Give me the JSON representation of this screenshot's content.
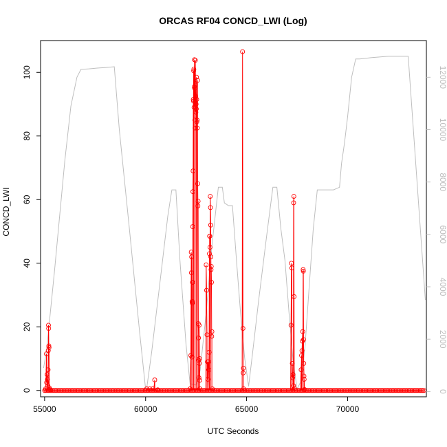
{
  "chart_data": {
    "type": "scatter",
    "title": "ORCAS RF04 CONCD_LWI (Log)",
    "xlabel": "UTC Seconds",
    "ylabel": "CONCD_LWI",
    "xlim": [
      54800,
      73900
    ],
    "ylim": [
      -2,
      110
    ],
    "y2lim": [
      -200,
      13400
    ],
    "xticks": [
      "55000",
      "60000",
      "65000",
      "70000"
    ],
    "yticks": [
      "0",
      "20",
      "40",
      "60",
      "80",
      "100"
    ],
    "y2ticks": [
      "0",
      "2000",
      "4000",
      "6000",
      "8000",
      "10000",
      "12000"
    ],
    "colors": {
      "series": "#ff0000",
      "altitude": "#bebebe"
    },
    "series": [
      {
        "values": [
          [
            55050,
            0.5
          ],
          [
            55090,
            11.5
          ],
          [
            55100,
            2.5
          ],
          [
            55120,
            5
          ],
          [
            55140,
            3.5
          ],
          [
            55160,
            1.5
          ],
          [
            55170,
            6.5
          ],
          [
            55180,
            12.5
          ],
          [
            55190,
            20.5
          ],
          [
            55200,
            19.5
          ],
          [
            55210,
            14
          ],
          [
            55220,
            13.5
          ],
          [
            55230,
            0.8
          ],
          [
            55250,
            0.3
          ],
          [
            55300,
            0.2
          ],
          [
            60050,
            0.5
          ],
          [
            60200,
            0.5
          ],
          [
            60350,
            0.5
          ],
          [
            60450,
            3.3
          ],
          [
            60600,
            0.2
          ],
          [
            62200,
            0.5
          ],
          [
            62240,
            11
          ],
          [
            62260,
            43.5
          ],
          [
            62270,
            37
          ],
          [
            62280,
            42
          ],
          [
            62290,
            10.5
          ],
          [
            62300,
            28
          ],
          [
            62310,
            27.5
          ],
          [
            62320,
            34
          ],
          [
            62330,
            51.5
          ],
          [
            62340,
            62.5
          ],
          [
            62350,
            69
          ],
          [
            62360,
            91.5
          ],
          [
            62370,
            91
          ],
          [
            62380,
            100.5
          ],
          [
            62390,
            101
          ],
          [
            62400,
            89
          ],
          [
            62410,
            95.5
          ],
          [
            62420,
            104
          ],
          [
            62430,
            95
          ],
          [
            62440,
            85
          ],
          [
            62450,
            82.5
          ],
          [
            62460,
            103.8
          ],
          [
            62470,
            96
          ],
          [
            62480,
            92.5
          ],
          [
            62490,
            87.5
          ],
          [
            62500,
            90
          ],
          [
            62510,
            88.5
          ],
          [
            62520,
            98.5
          ],
          [
            62530,
            91.5
          ],
          [
            62540,
            84.5
          ],
          [
            62550,
            85
          ],
          [
            62560,
            82.5
          ],
          [
            62570,
            97.5
          ],
          [
            62580,
            65
          ],
          [
            62590,
            58
          ],
          [
            62600,
            59.5
          ],
          [
            62610,
            21
          ],
          [
            62620,
            16.5
          ],
          [
            62630,
            9.5
          ],
          [
            62640,
            4
          ],
          [
            62650,
            20.5
          ],
          [
            62660,
            8.5
          ],
          [
            62670,
            10
          ],
          [
            62680,
            3.2
          ],
          [
            62690,
            0.5
          ],
          [
            63000,
            39.5
          ],
          [
            63020,
            31.5
          ],
          [
            63040,
            17.5
          ],
          [
            63060,
            9
          ],
          [
            63080,
            3.5
          ],
          [
            63100,
            9
          ],
          [
            63120,
            6.5
          ],
          [
            63140,
            12
          ],
          [
            63160,
            43
          ],
          [
            63170,
            48.5
          ],
          [
            63180,
            48.5
          ],
          [
            63190,
            45
          ],
          [
            63200,
            61
          ],
          [
            63210,
            57.5
          ],
          [
            63220,
            52
          ],
          [
            63230,
            42
          ],
          [
            63240,
            38
          ],
          [
            63250,
            39
          ],
          [
            63260,
            34
          ],
          [
            63270,
            17
          ],
          [
            63280,
            18.5
          ],
          [
            63300,
            0.5
          ],
          [
            64800,
            106.5
          ],
          [
            64820,
            19.5
          ],
          [
            64830,
            5.5
          ],
          [
            64840,
            7
          ],
          [
            64850,
            0.5
          ],
          [
            67200,
            20.5
          ],
          [
            67220,
            40
          ],
          [
            67240,
            38.5
          ],
          [
            67260,
            8.5
          ],
          [
            67280,
            4
          ],
          [
            67300,
            5
          ],
          [
            67320,
            1.5
          ],
          [
            67330,
            59
          ],
          [
            67340,
            61
          ],
          [
            67350,
            29.5
          ],
          [
            67370,
            0.5
          ],
          [
            67700,
            6.5
          ],
          [
            67720,
            11
          ],
          [
            67740,
            12.5
          ],
          [
            67760,
            15.5
          ],
          [
            67780,
            18.5
          ],
          [
            67800,
            38
          ],
          [
            67810,
            37.5
          ],
          [
            67820,
            16
          ],
          [
            67830,
            8.5
          ],
          [
            67840,
            4.5
          ],
          [
            67850,
            3.5
          ],
          [
            67870,
            0.3
          ]
        ]
      },
      {
        "values": [
          [
            54950,
            900
          ],
          [
            55100,
            1600
          ],
          [
            55500,
            4700
          ],
          [
            56000,
            8800
          ],
          [
            56300,
            10900
          ],
          [
            56600,
            12000
          ],
          [
            56800,
            12300
          ],
          [
            57200,
            12320
          ],
          [
            57600,
            12350
          ],
          [
            58000,
            12370
          ],
          [
            58450,
            12400
          ],
          [
            58700,
            10000
          ],
          [
            59200,
            6200
          ],
          [
            59700,
            2300
          ],
          [
            60000,
            100
          ],
          [
            60050,
            100
          ],
          [
            60300,
            1500
          ],
          [
            60700,
            4100
          ],
          [
            61100,
            6700
          ],
          [
            61300,
            7700
          ],
          [
            61500,
            7700
          ],
          [
            61700,
            5000
          ],
          [
            62000,
            1800
          ],
          [
            62200,
            300
          ],
          [
            62500,
            250
          ],
          [
            62700,
            800
          ],
          [
            63000,
            3000
          ],
          [
            63300,
            5700
          ],
          [
            63600,
            7800
          ],
          [
            63800,
            7800
          ],
          [
            63900,
            7200
          ],
          [
            64100,
            7100
          ],
          [
            64300,
            7100
          ],
          [
            64500,
            5000
          ],
          [
            64700,
            3000
          ],
          [
            64900,
            1300
          ],
          [
            65100,
            200
          ],
          [
            65300,
            1500
          ],
          [
            65600,
            3500
          ],
          [
            66000,
            6000
          ],
          [
            66300,
            7800
          ],
          [
            66500,
            7800
          ],
          [
            66700,
            6200
          ],
          [
            66900,
            5000
          ],
          [
            67100,
            3000
          ],
          [
            67300,
            1200
          ],
          [
            67500,
            100
          ],
          [
            67700,
            400
          ],
          [
            67900,
            1800
          ],
          [
            68100,
            4000
          ],
          [
            68300,
            6200
          ],
          [
            68500,
            7700
          ],
          [
            68700,
            7700
          ],
          [
            69300,
            7700
          ],
          [
            69600,
            7800
          ],
          [
            69700,
            8700
          ],
          [
            69850,
            9500
          ],
          [
            70000,
            10500
          ],
          [
            70200,
            12000
          ],
          [
            70400,
            12700
          ],
          [
            70600,
            12700
          ],
          [
            71200,
            12750
          ],
          [
            72000,
            12800
          ],
          [
            72500,
            12800
          ],
          [
            73000,
            12800
          ],
          [
            73850,
            3500
          ]
        ]
      }
    ]
  }
}
